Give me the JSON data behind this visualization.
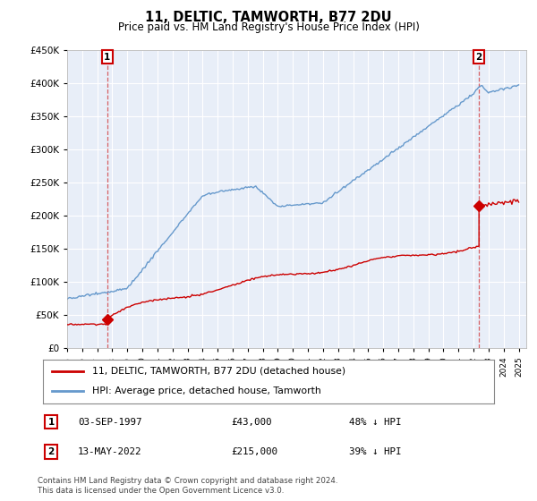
{
  "title": "11, DELTIC, TAMWORTH, B77 2DU",
  "subtitle": "Price paid vs. HM Land Registry's House Price Index (HPI)",
  "red_label": "11, DELTIC, TAMWORTH, B77 2DU (detached house)",
  "blue_label": "HPI: Average price, detached house, Tamworth",
  "point1_date": "03-SEP-1997",
  "point1_price": "£43,000",
  "point1_pct": "48% ↓ HPI",
  "point2_date": "13-MAY-2022",
  "point2_price": "£215,000",
  "point2_pct": "39% ↓ HPI",
  "footer": "Contains HM Land Registry data © Crown copyright and database right 2024.\nThis data is licensed under the Open Government Licence v3.0.",
  "ylim": [
    0,
    450000
  ],
  "yticks": [
    0,
    50000,
    100000,
    150000,
    200000,
    250000,
    300000,
    350000,
    400000,
    450000
  ],
  "background_color": "#ffffff",
  "plot_bg_color": "#e8eef8",
  "grid_color": "#ffffff",
  "red_color": "#cc0000",
  "blue_color": "#6699cc",
  "point1_x_year": 1997.67,
  "point2_x_year": 2022.36,
  "point1_y": 43000,
  "point2_y": 215000,
  "xmin": 1995,
  "xmax": 2025.5
}
